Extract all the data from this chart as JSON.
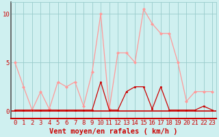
{
  "x": [
    0,
    1,
    2,
    3,
    4,
    5,
    6,
    7,
    8,
    9,
    10,
    11,
    12,
    13,
    14,
    15,
    16,
    17,
    18,
    19,
    20,
    21,
    22,
    23
  ],
  "rafales": [
    5,
    2.5,
    0.1,
    2,
    0.2,
    3,
    2.5,
    3,
    0.5,
    4,
    10,
    0.2,
    6,
    6,
    5,
    10.5,
    9,
    8,
    8,
    5,
    1,
    2,
    2,
    2
  ],
  "moyen": [
    0.1,
    0.1,
    0.1,
    0.1,
    0.1,
    0.1,
    0.1,
    0.1,
    0.1,
    0.1,
    3,
    0.1,
    0.1,
    2,
    2.5,
    2.5,
    0.2,
    2.5,
    0.1,
    0.1,
    0.1,
    0.1,
    0.5,
    0.1
  ],
  "bg_color": "#cff0f0",
  "line_color_rafales": "#ff9999",
  "line_color_moyen": "#cc0000",
  "grid_color": "#99cccc",
  "xlabel": "Vent moyen/en rafales ( km/h )",
  "yticks": [
    0,
    5,
    10
  ],
  "xlim": [
    -0.5,
    23.5
  ],
  "ylim": [
    -0.8,
    11.2
  ],
  "xlabel_color": "#cc0000",
  "xlabel_fontsize": 7.5,
  "tick_fontsize": 6.5,
  "tick_color": "#cc0000",
  "spine_left_color": "#555555",
  "spine_bottom_color": "#cc0000",
  "marker_rafales": "D",
  "marker_moyen": "s",
  "markersize": 2.0,
  "linewidth": 0.9
}
